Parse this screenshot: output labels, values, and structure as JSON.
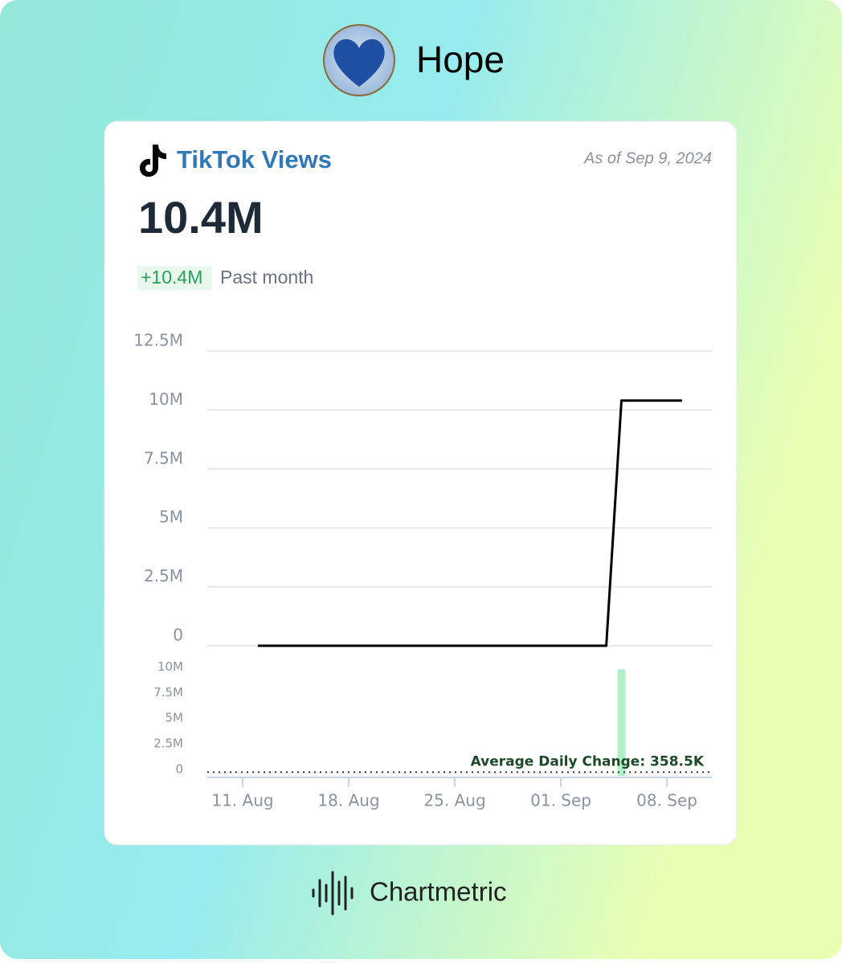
{
  "header": {
    "title": "Hope"
  },
  "card": {
    "title": "TikTok Views",
    "as_of": "As of Sep 9, 2024",
    "total": "10.4M",
    "change": "+10.4M",
    "change_period": "Past month"
  },
  "chart_data": [
    {
      "type": "line",
      "categories": [
        "11. Aug",
        "12. Aug",
        "13. Aug",
        "14. Aug",
        "15. Aug",
        "16. Aug",
        "17. Aug",
        "18. Aug",
        "19. Aug",
        "20. Aug",
        "21. Aug",
        "22. Aug",
        "23. Aug",
        "24. Aug",
        "25. Aug",
        "26. Aug",
        "27. Aug",
        "28. Aug",
        "29. Aug",
        "30. Aug",
        "31. Aug",
        "01. Sep",
        "02. Sep",
        "03. Sep",
        "04. Sep",
        "05. Sep",
        "06. Sep",
        "07. Sep",
        "08. Sep",
        "09. Sep"
      ],
      "values": [
        null,
        0,
        0,
        0,
        0,
        0,
        0,
        0,
        0,
        0,
        0,
        0,
        0,
        0,
        0,
        0,
        0,
        0,
        0,
        0,
        0,
        0,
        0,
        0,
        0,
        10400000,
        10400000,
        10400000,
        10400000,
        10400000
      ],
      "color": "#000000",
      "ylim": [
        0,
        12500000
      ],
      "yticks": [
        {
          "value": 0,
          "label": "0"
        },
        {
          "value": 2500000,
          "label": "2.5M"
        },
        {
          "value": 5000000,
          "label": "5M"
        },
        {
          "value": 7500000,
          "label": "7.5M"
        },
        {
          "value": 10000000,
          "label": "10M"
        },
        {
          "value": 12500000,
          "label": "12.5M"
        }
      ],
      "grid": true
    },
    {
      "type": "bar",
      "categories": [
        "11. Aug",
        "12. Aug",
        "13. Aug",
        "14. Aug",
        "15. Aug",
        "16. Aug",
        "17. Aug",
        "18. Aug",
        "19. Aug",
        "20. Aug",
        "21. Aug",
        "22. Aug",
        "23. Aug",
        "24. Aug",
        "25. Aug",
        "26. Aug",
        "27. Aug",
        "28. Aug",
        "29. Aug",
        "30. Aug",
        "31. Aug",
        "01. Sep",
        "02. Sep",
        "03. Sep",
        "04. Sep",
        "05. Sep",
        "06. Sep",
        "07. Sep",
        "08. Sep",
        "09. Sep"
      ],
      "values": [
        null,
        0,
        0,
        0,
        0,
        0,
        0,
        0,
        0,
        0,
        0,
        0,
        0,
        0,
        0,
        0,
        0,
        0,
        0,
        0,
        0,
        0,
        0,
        0,
        0,
        10400000,
        0,
        0,
        0,
        0
      ],
      "color": "#b2efc8",
      "ylim": [
        0,
        10500000
      ],
      "yticks": [
        {
          "value": 0,
          "label": "0"
        },
        {
          "value": 2500000,
          "label": "2.5M"
        },
        {
          "value": 5000000,
          "label": "5M"
        },
        {
          "value": 7500000,
          "label": "7.5M"
        },
        {
          "value": 10000000,
          "label": "10M"
        }
      ],
      "xticks": [
        "11. Aug",
        "18. Aug",
        "25. Aug",
        "01. Sep",
        "08. Sep"
      ],
      "average": 358500,
      "average_label": "Average Daily Change: 358.5K"
    }
  ],
  "footer": {
    "brand": "Chartmetric"
  }
}
